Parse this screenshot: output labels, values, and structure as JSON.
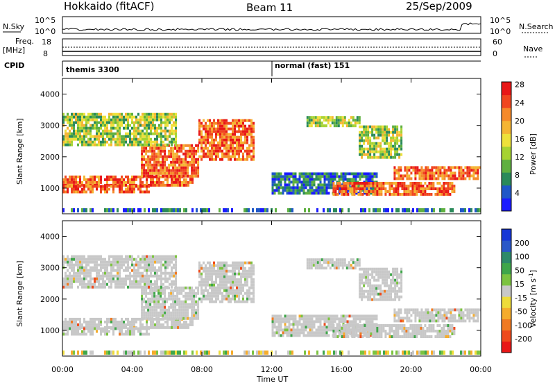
{
  "header": {
    "radar": "Hokkaido (fitACF)",
    "beam": "Beam 11",
    "date": "25/Sep/2009"
  },
  "noise_panel": {
    "left_label": "N.Sky",
    "right_label": "N.Search",
    "top_tick": "10^5",
    "bottom_tick": "10^0",
    "right_top_tick": "10^5",
    "right_bottom_tick": "10^0"
  },
  "freq_panel": {
    "left_label_1": "Freq.",
    "left_label_2": "[MHz]",
    "right_label": "Nave",
    "left_ticks": [
      "18",
      "8"
    ],
    "right_ticks": [
      "60",
      "0"
    ]
  },
  "cpid": {
    "label": "CPID",
    "modes": [
      {
        "name": "themis 3300",
        "start_hour": 0
      },
      {
        "name": "normal (fast) 151",
        "start_hour": 12
      }
    ]
  },
  "axes": {
    "ylabel": "Slant Range [km]",
    "xlabel": "Time UT",
    "yticks": [
      "1000",
      "2000",
      "3000",
      "4000"
    ],
    "xticks": [
      "00:00",
      "04:00",
      "08:00",
      "12:00",
      "16:00",
      "20:00",
      "00:00"
    ]
  },
  "colorbars": {
    "power": {
      "label": "Power [dB]",
      "ticks": [
        "4",
        "8",
        "12",
        "16",
        "20",
        "24",
        "28"
      ],
      "colors": [
        "#1a1aff",
        "#1f57c8",
        "#2a8a5a",
        "#5fb040",
        "#a6d332",
        "#eee13a",
        "#f5b533",
        "#f58a2a",
        "#f0461f",
        "#e81717"
      ]
    },
    "velocity": {
      "label": "Velocity [m s",
      "label_sup": "-1",
      "label_end": "]",
      "ticks": [
        "200",
        "100",
        "50",
        "15",
        "-15",
        "-50",
        "-100",
        "-200"
      ],
      "colors": [
        "#1536d6",
        "#2a58c8",
        "#2d8a6a",
        "#3fa64a",
        "#7cc340",
        "#c8c8c8",
        "#eedc3a",
        "#f5ac2c",
        "#f07a22",
        "#ee4a1c",
        "#e81717"
      ]
    }
  },
  "chart_data": {
    "type": "heatmap",
    "x_range_hours": [
      0,
      24
    ],
    "y_range_km": [
      180,
      4500
    ],
    "power_regions": [
      {
        "t0": 0.0,
        "t1": 7.5,
        "r0": 1100,
        "r1": 1400,
        "level": "high"
      },
      {
        "t0": 0.0,
        "t1": 5.0,
        "r0": 850,
        "r1": 1100,
        "level": "high"
      },
      {
        "t0": 4.5,
        "t1": 7.8,
        "r0": 1400,
        "r1": 2400,
        "level": "high"
      },
      {
        "t0": 7.8,
        "t1": 11.0,
        "r0": 1900,
        "r1": 3200,
        "level": "high"
      },
      {
        "t0": 0.0,
        "t1": 6.5,
        "r0": 2400,
        "r1": 3400,
        "level": "mid"
      },
      {
        "t0": 12.0,
        "t1": 18.0,
        "r0": 800,
        "r1": 1500,
        "level": "low"
      },
      {
        "t0": 15.5,
        "t1": 22.5,
        "r0": 800,
        "r1": 1200,
        "level": "high"
      },
      {
        "t0": 19.0,
        "t1": 24.0,
        "r0": 1300,
        "r1": 1700,
        "level": "high"
      },
      {
        "t0": 17.0,
        "t1": 19.5,
        "r0": 2000,
        "r1": 3000,
        "level": "mid"
      },
      {
        "t0": 14.0,
        "t1": 17.0,
        "r0": 3000,
        "r1": 3300,
        "level": "mid"
      }
    ]
  }
}
